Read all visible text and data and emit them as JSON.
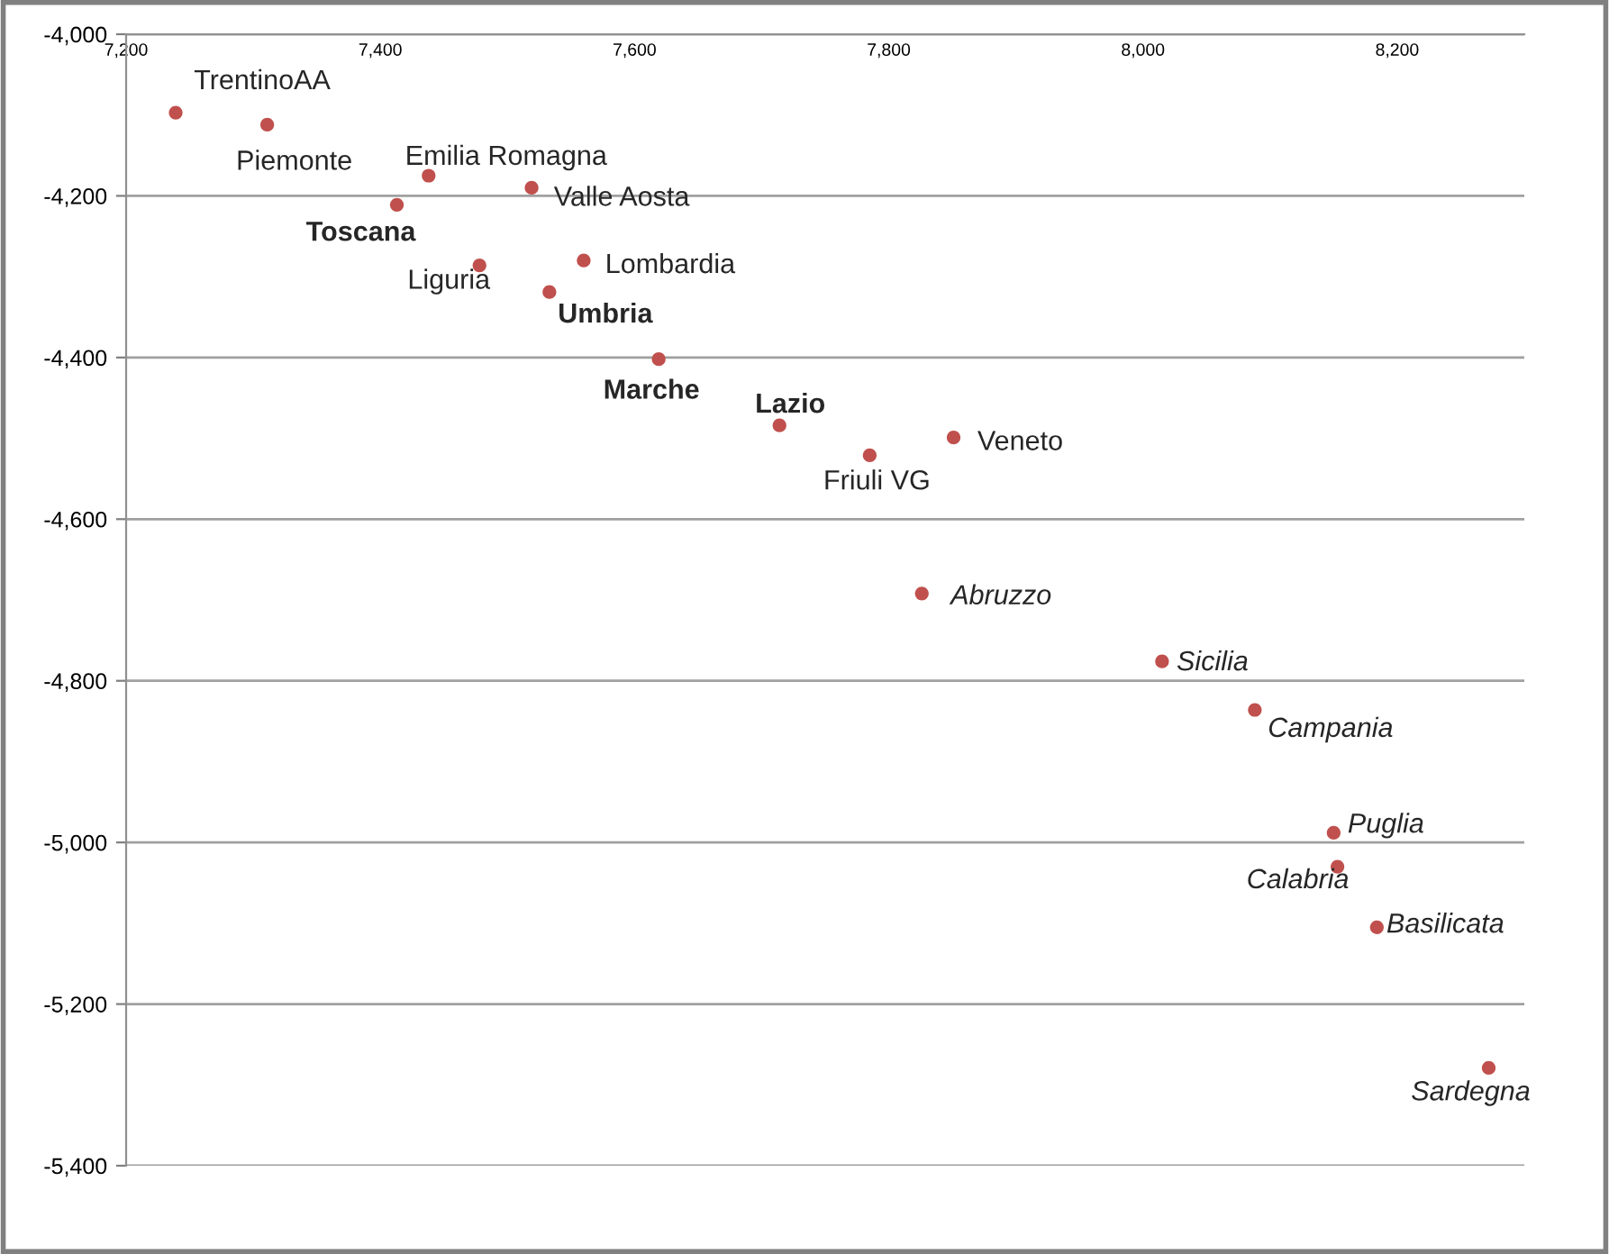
{
  "chart_data": {
    "type": "scatter",
    "xlim": [
      7200,
      8300
    ],
    "ylim": [
      -5400,
      -4000
    ],
    "xticks": [
      {
        "value": 7200,
        "label": "7,200"
      },
      {
        "value": 7400,
        "label": "7,400"
      },
      {
        "value": 7600,
        "label": "7,600"
      },
      {
        "value": 7800,
        "label": "7,800"
      },
      {
        "value": 8000,
        "label": "8,000"
      },
      {
        "value": 8200,
        "label": "8,200"
      }
    ],
    "yticks": [
      {
        "value": -5400,
        "label": "-5,400"
      },
      {
        "value": -5200,
        "label": "-5,200"
      },
      {
        "value": -5000,
        "label": "-5,000"
      },
      {
        "value": -4800,
        "label": "-4,800"
      },
      {
        "value": -4600,
        "label": "-4,600"
      },
      {
        "value": -4400,
        "label": "-4,400"
      },
      {
        "value": -4200,
        "label": "-4,200"
      },
      {
        "value": -4000,
        "label": "-4,000"
      }
    ],
    "grid": "y",
    "marker": "circle",
    "series": [
      {
        "color": "#c0504d",
        "x": [
          7239,
          7311,
          7438,
          7519,
          7478,
          7560,
          7785,
          7851
        ],
        "values": [
          -4097,
          -4112,
          -4175,
          -4190,
          -4286,
          -4280,
          -4521,
          -4499
        ]
      },
      {
        "color": "#c0504d",
        "x": [
          7413,
          7533,
          7619,
          7714
        ],
        "values": [
          -4211,
          -4319,
          -4402,
          -4484
        ]
      },
      {
        "color": "#c0504d",
        "x": [
          7826,
          8015,
          8088,
          8150,
          8153,
          8184,
          8272
        ],
        "values": [
          -4692,
          -4776,
          -4836,
          -4988,
          -5030,
          -5105,
          -5279
        ]
      }
    ],
    "annotations": [
      {
        "text": "TrentinoAA",
        "x": 7239,
        "y": -4097
      },
      {
        "text": "Piemonte",
        "x": 7311,
        "y": -4112
      },
      {
        "text": "Emilia Romagna",
        "x": 7438,
        "y": -4175
      },
      {
        "text": "Valle Aosta",
        "x": 7519,
        "y": -4190
      },
      {
        "text": "Liguria",
        "x": 7478,
        "y": -4286
      },
      {
        "text": "Lombardia",
        "x": 7560,
        "y": -4280
      },
      {
        "text": "Friuli VG",
        "x": 7785,
        "y": -4521
      },
      {
        "text": "Veneto",
        "x": 7851,
        "y": -4499
      },
      {
        "text": "Toscana",
        "x": 7413,
        "y": -4211
      },
      {
        "text": "Umbria",
        "x": 7533,
        "y": -4319
      },
      {
        "text": "Marche",
        "x": 7619,
        "y": -4402
      },
      {
        "text": "Lazio",
        "x": 7714,
        "y": -4484
      },
      {
        "text": "Abruzzo",
        "x": 7826,
        "y": -4692
      },
      {
        "text": "Sicilia",
        "x": 8015,
        "y": -4776
      },
      {
        "text": "Campania",
        "x": 8088,
        "y": -4836
      },
      {
        "text": "Puglia",
        "x": 8150,
        "y": -4988
      },
      {
        "text": "Calabria",
        "x": 8153,
        "y": -5030
      },
      {
        "text": "Basilicata",
        "x": 8184,
        "y": -5105
      },
      {
        "text": "Sardegna",
        "x": 8272,
        "y": -5279
      }
    ]
  }
}
